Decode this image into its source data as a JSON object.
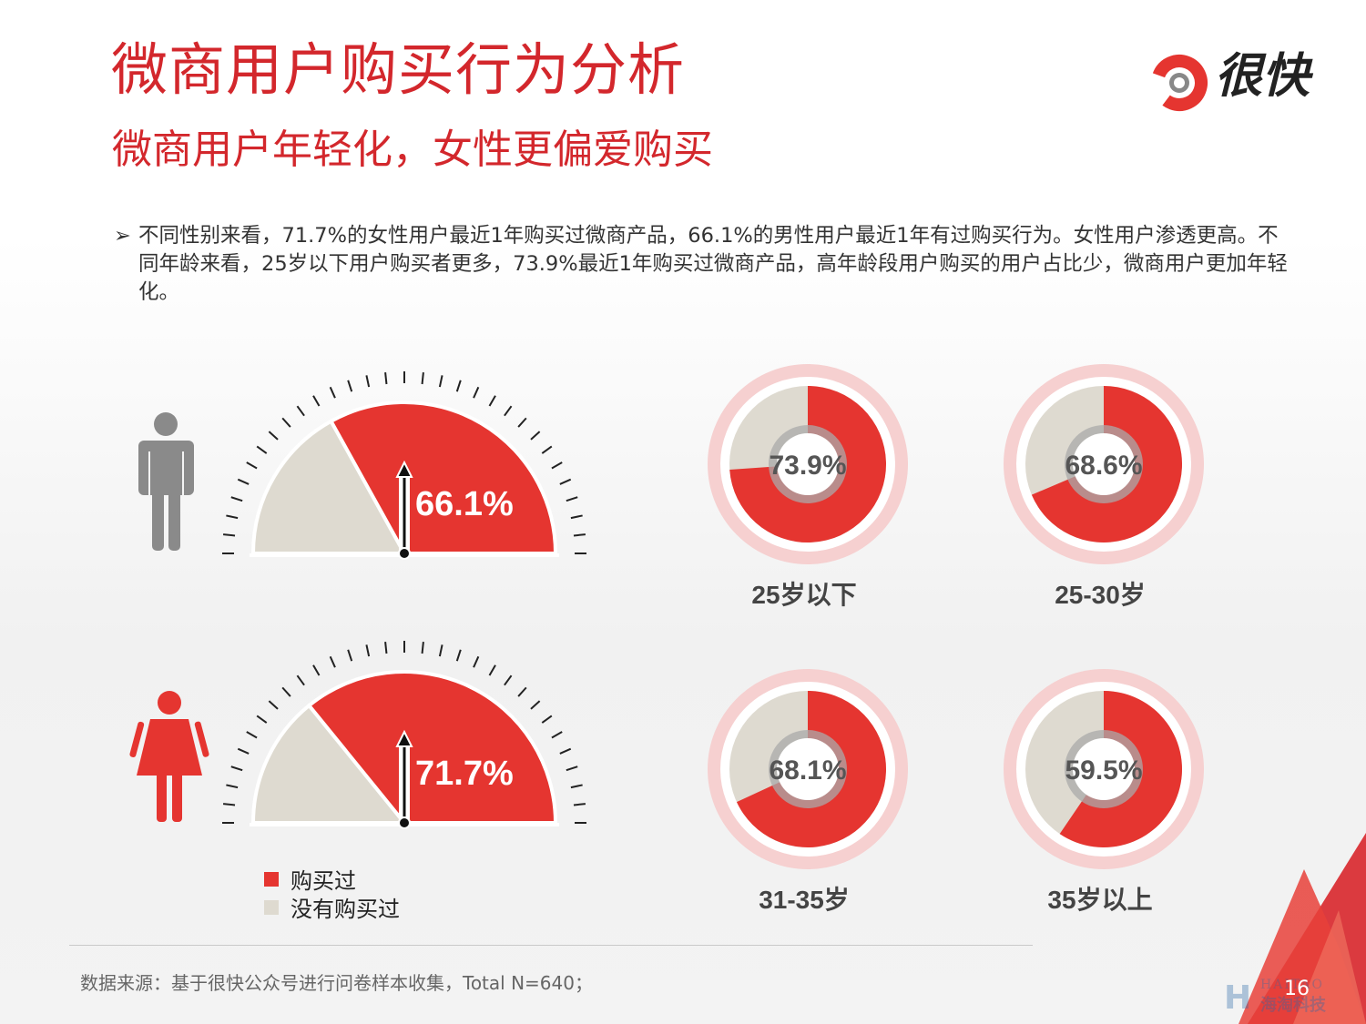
{
  "header": {
    "title": "微商用户购买行为分析",
    "subtitle": "微商用户年轻化，女性更偏爱购买",
    "logo_text": "很快"
  },
  "bullet": {
    "arrow": "➢",
    "text": "不同性别来看，71.7%的女性用户最近1年购买过微商产品，66.1%的男性用户最近1年有过购买行为。女性用户渗透更高。不同年龄来看，25岁以下用户购买者更多，73.9%最近1年购买过微商产品，高年龄段用户购买的用户占比少，微商用户更加年轻化。"
  },
  "chart_data": [
    {
      "type": "gauge",
      "series": [
        {
          "name": "男",
          "value": 66.1,
          "label": "66.1%",
          "icon": "male-icon"
        },
        {
          "name": "女",
          "value": 71.7,
          "label": "71.7%",
          "icon": "female-icon"
        }
      ],
      "legend": [
        "购买过",
        "没有购买过"
      ],
      "legend_position": "bottom-left"
    },
    {
      "type": "pie",
      "categories": [
        "25岁以下",
        "25-30岁",
        "31-35岁",
        "35岁以上"
      ],
      "values": [
        73.9,
        68.6,
        68.1,
        59.5
      ],
      "labels": [
        "73.9%",
        "68.6%",
        "68.1%",
        "59.5%"
      ]
    }
  ],
  "legend": {
    "bought": "购买过",
    "not_bought": "没有购买过"
  },
  "colors": {
    "red": "#e53530",
    "beige": "#dedad0",
    "title_red": "#d3272c",
    "ring_light": "#f6d0d0"
  },
  "footer": {
    "source": "数据来源：基于很快公众号进行问卷样本收集，Total N=640；",
    "page_number": "16",
    "watermark_line1": "HAITAO",
    "watermark_line2": "海淘科技"
  }
}
